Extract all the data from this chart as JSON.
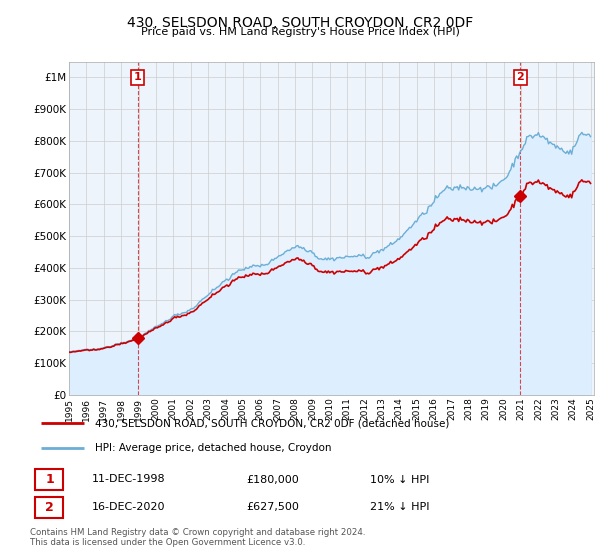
{
  "title": "430, SELSDON ROAD, SOUTH CROYDON, CR2 0DF",
  "subtitle": "Price paid vs. HM Land Registry's House Price Index (HPI)",
  "hpi_color": "#6baed6",
  "hpi_fill_color": "#ddeeff",
  "price_color": "#cc0000",
  "marker_color": "#cc0000",
  "legend_label_red": "430, SELSDON ROAD, SOUTH CROYDON, CR2 0DF (detached house)",
  "legend_label_blue": "HPI: Average price, detached house, Croydon",
  "sale1_date": "11-DEC-1998",
  "sale1_price": "£180,000",
  "sale1_hpi": "10% ↓ HPI",
  "sale2_date": "16-DEC-2020",
  "sale2_price": "£627,500",
  "sale2_hpi": "21% ↓ HPI",
  "footer": "Contains HM Land Registry data © Crown copyright and database right 2024.\nThis data is licensed under the Open Government Licence v3.0.",
  "ylim": [
    0,
    1050000
  ],
  "yticks": [
    0,
    100000,
    200000,
    300000,
    400000,
    500000,
    600000,
    700000,
    800000,
    900000,
    1000000
  ],
  "ytick_labels": [
    "£0",
    "£100K",
    "£200K",
    "£300K",
    "£400K",
    "£500K",
    "£600K",
    "£700K",
    "£800K",
    "£900K",
    "£1M"
  ],
  "sale1_year": 1998.96,
  "sale1_value": 180000,
  "sale2_year": 2020.96,
  "sale2_value": 627500,
  "background_color": "#ffffff",
  "grid_color": "#cccccc",
  "plot_bg_color": "#eef4fb"
}
